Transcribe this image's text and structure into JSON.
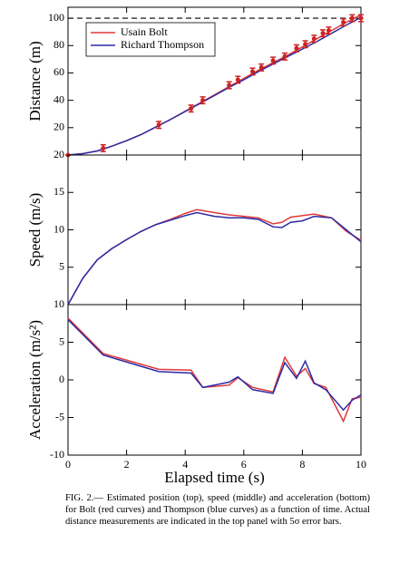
{
  "chart_data": [
    {
      "type": "line",
      "ylabel": "Distance (m)",
      "xlim": [
        0,
        10
      ],
      "ylim": [
        0,
        108
      ],
      "yticks": [
        20,
        40,
        60,
        80,
        100
      ],
      "reference_line": 100,
      "legend": "upper left",
      "x": [
        0,
        0.5,
        1,
        1.5,
        2,
        2.5,
        3,
        3.5,
        4,
        4.5,
        5,
        5.5,
        6,
        6.5,
        7,
        7.5,
        8,
        8.5,
        9,
        9.5,
        10
      ],
      "series": [
        {
          "name": "Usain Bolt",
          "color": "#e03a3a",
          "values": [
            0,
            1,
            3,
            6.5,
            10.5,
            15,
            20.5,
            26,
            32,
            38,
            44,
            50,
            56,
            62,
            67.5,
            73,
            79,
            85,
            91,
            97,
            102.5
          ]
        },
        {
          "name": "Richard Thompson",
          "color": "#2b2ba6",
          "values": [
            0,
            1,
            3,
            6.5,
            10.5,
            15,
            20.5,
            26,
            31.8,
            37.6,
            43.5,
            49.5,
            55,
            61,
            66.5,
            72,
            77.5,
            83,
            89,
            95,
            100.5
          ]
        }
      ],
      "measurements": {
        "color": "#cc2222",
        "x": [
          0,
          1.2,
          3.1,
          4.2,
          4.6,
          5.5,
          5.8,
          6.3,
          6.6,
          7.0,
          7.4,
          7.8,
          8.1,
          8.4,
          8.7,
          8.9,
          9.4,
          9.7,
          10
        ],
        "values": [
          0,
          5,
          22,
          34,
          40,
          51,
          55,
          61,
          64,
          69,
          72,
          78,
          81,
          85,
          89,
          91,
          97,
          100,
          100
        ],
        "errors": [
          0,
          2.5,
          2.5,
          2.5,
          2.5,
          2.5,
          2.5,
          2.5,
          2.5,
          2.5,
          2.5,
          2.5,
          2.5,
          2.5,
          2.5,
          2.5,
          2.5,
          2.5,
          2.5
        ]
      }
    },
    {
      "type": "line",
      "ylabel": "Speed (m/s)",
      "xlim": [
        0,
        10
      ],
      "ylim": [
        0,
        20
      ],
      "yticks": [
        5,
        10,
        15,
        20
      ],
      "x": [
        0,
        0.5,
        1,
        1.5,
        2,
        2.5,
        3,
        3.5,
        4,
        4.4,
        5,
        5.5,
        6,
        6.5,
        7,
        7.3,
        7.6,
        8,
        8.4,
        9,
        9.5,
        10
      ],
      "series": [
        {
          "name": "Usain Bolt",
          "color": "#e03a3a",
          "values": [
            0,
            3.5,
            6,
            7.5,
            8.7,
            9.8,
            10.7,
            11.4,
            12.2,
            12.7,
            12.3,
            12.0,
            11.8,
            11.6,
            10.8,
            11.0,
            11.7,
            11.9,
            12.1,
            11.6,
            9.8,
            8.6
          ]
        },
        {
          "name": "Richard Thompson",
          "color": "#2b2ba6",
          "values": [
            0,
            3.5,
            6,
            7.5,
            8.7,
            9.8,
            10.7,
            11.3,
            11.9,
            12.3,
            11.8,
            11.6,
            11.6,
            11.4,
            10.4,
            10.3,
            11.0,
            11.2,
            11.8,
            11.6,
            10.0,
            8.4
          ]
        }
      ]
    },
    {
      "type": "line",
      "ylabel": "Acceleration (m/s²)",
      "xlabel": "Elapsed time (s)",
      "xlim": [
        0,
        10
      ],
      "xticks": [
        0,
        2,
        4,
        6,
        8,
        10
      ],
      "ylim": [
        -10,
        10
      ],
      "yticks": [
        -10,
        -5,
        0,
        5,
        10
      ],
      "x": [
        0,
        1.2,
        3.1,
        4.2,
        4.6,
        5.5,
        5.8,
        6.3,
        7.0,
        7.4,
        7.8,
        8.1,
        8.4,
        8.8,
        9.4,
        9.7,
        10
      ],
      "series": [
        {
          "name": "Usain Bolt",
          "color": "#e03a3a",
          "values": [
            8.2,
            3.5,
            1.4,
            1.3,
            -1.0,
            -0.7,
            0.3,
            -1.0,
            -1.6,
            3.0,
            0.5,
            1.5,
            -0.5,
            -1.0,
            -5.5,
            -2.5,
            -2.3
          ]
        },
        {
          "name": "Richard Thompson",
          "color": "#2b2ba6",
          "values": [
            8.0,
            3.3,
            1.1,
            0.9,
            -1.0,
            -0.3,
            0.4,
            -1.3,
            -1.8,
            2.3,
            0.2,
            2.5,
            -0.4,
            -1.3,
            -4.0,
            -2.7,
            -2.0
          ]
        }
      ]
    }
  ],
  "caption": "FIG. 2.— Estimated position (top), speed (middle) and acceleration (bottom) for Bolt (red curves) and Thompson (blue curves) as a function of time. Actual distance measurements are indicated in the top panel with 5σ error bars."
}
